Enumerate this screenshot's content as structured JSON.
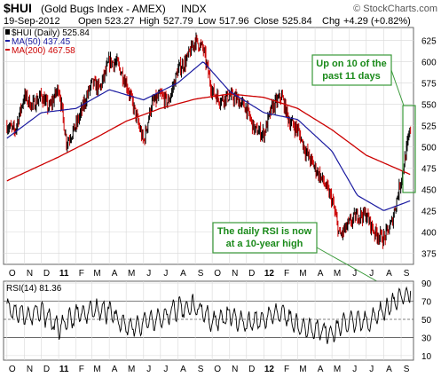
{
  "header": {
    "symbol": "$HUI",
    "name": "(Gold Bugs Index - AMEX)",
    "exchange": "INDX",
    "watermark": "© StockCharts.com",
    "date": "19-Sep-2012",
    "open_label": "Open",
    "open": "523.27",
    "high_label": "High",
    "high": "527.79",
    "low_label": "Low",
    "low": "517.96",
    "close_label": "Close",
    "close": "525.84",
    "chg_label": "Chg",
    "chg": "+4.29 (+0.82%)"
  },
  "legend": {
    "price": "$HUI (Daily) 525.84",
    "ma50": "MA(50) 437.45",
    "ma200": "MA(200) 467.58"
  },
  "annotations": {
    "top_right": [
      "Up on 10 of the",
      "past 11 days"
    ],
    "rsi": [
      "The daily RSI is now",
      "at a 10-year high"
    ]
  },
  "rsi_label": "RSI(14) 81.36",
  "colors": {
    "price_up": "#000000",
    "price_down": "#cc0000",
    "ma50": "#1a1aa0",
    "ma200": "#cc0000",
    "annotation_text": "#1a8a1a",
    "annotation_border": "#3a9a3a",
    "annotation_fill": "#ffffff",
    "rsi_line": "#000000",
    "grid": "#d8d8d8"
  },
  "chart_data": [
    {
      "type": "line",
      "subtype": "candlestick",
      "title": "$HUI (Gold Bugs Index - AMEX) INDX",
      "y_ticks": [
        375,
        400,
        425,
        450,
        475,
        500,
        525,
        550,
        575,
        600,
        625
      ],
      "ylim": [
        362,
        640
      ],
      "x_ticks": [
        "O",
        "N",
        "D",
        "11",
        "F",
        "M",
        "A",
        "M",
        "J",
        "J",
        "A",
        "S",
        "O",
        "N",
        "D",
        "12",
        "F",
        "M",
        "A",
        "M",
        "J",
        "J",
        "A",
        "S"
      ],
      "x_ticks_bold": [
        "11",
        "12"
      ],
      "series": [
        {
          "name": "$HUI (Daily)",
          "x": [
            "2010-10-01",
            "2010-10-15",
            "2010-11-01",
            "2010-11-15",
            "2010-12-01",
            "2010-12-15",
            "2011-01-01",
            "2011-01-15",
            "2011-02-01",
            "2011-02-15",
            "2011-03-01",
            "2011-03-15",
            "2011-04-01",
            "2011-04-15",
            "2011-05-01",
            "2011-05-15",
            "2011-06-01",
            "2011-06-15",
            "2011-07-01",
            "2011-07-15",
            "2011-08-01",
            "2011-08-15",
            "2011-09-01",
            "2011-09-15",
            "2011-10-01",
            "2011-10-15",
            "2011-11-01",
            "2011-11-15",
            "2011-12-01",
            "2011-12-15",
            "2012-01-01",
            "2012-01-15",
            "2012-02-01",
            "2012-02-15",
            "2012-03-01",
            "2012-03-15",
            "2012-04-01",
            "2012-04-15",
            "2012-05-01",
            "2012-05-15",
            "2012-06-01",
            "2012-06-15",
            "2012-07-01",
            "2012-07-15",
            "2012-08-01",
            "2012-08-15",
            "2012-09-01",
            "2012-09-19"
          ],
          "values": [
            525,
            518,
            560,
            548,
            560,
            545,
            570,
            505,
            525,
            550,
            575,
            568,
            600,
            598,
            575,
            545,
            505,
            550,
            560,
            552,
            590,
            600,
            625,
            615,
            565,
            555,
            560,
            555,
            545,
            520,
            515,
            545,
            560,
            530,
            520,
            495,
            475,
            460,
            438,
            395,
            410,
            420,
            420,
            400,
            392,
            410,
            462,
            526
          ]
        },
        {
          "name": "MA(50)",
          "x": [
            "2010-10-01",
            "2010-12-01",
            "2011-02-01",
            "2011-04-01",
            "2011-06-01",
            "2011-08-01",
            "2011-09-15",
            "2011-11-01",
            "2012-01-01",
            "2012-03-01",
            "2012-05-01",
            "2012-06-15",
            "2012-08-01",
            "2012-09-19"
          ],
          "values": [
            510,
            540,
            545,
            567,
            555,
            575,
            600,
            565,
            540,
            532,
            495,
            443,
            425,
            437
          ]
        },
        {
          "name": "MA(200)",
          "x": [
            "2010-10-01",
            "2011-01-01",
            "2011-03-01",
            "2011-05-01",
            "2011-07-01",
            "2011-09-01",
            "2011-11-01",
            "2012-01-01",
            "2012-03-01",
            "2012-05-01",
            "2012-07-01",
            "2012-09-19"
          ],
          "values": [
            460,
            488,
            508,
            530,
            545,
            556,
            562,
            558,
            545,
            520,
            490,
            467
          ]
        }
      ]
    },
    {
      "type": "line",
      "title": "RSI(14) 81.36",
      "y_ticks": [
        10,
        30,
        50,
        70,
        90
      ],
      "ylim": [
        5,
        92
      ],
      "reference_lines": [
        30,
        50,
        70
      ],
      "series": [
        {
          "name": "RSI(14)",
          "x": [
            "2010-10-01",
            "2010-11-01",
            "2010-12-01",
            "2011-01-01",
            "2011-02-01",
            "2011-03-01",
            "2011-04-01",
            "2011-05-01",
            "2011-06-01",
            "2011-07-01",
            "2011-08-01",
            "2011-09-01",
            "2011-10-01",
            "2011-11-01",
            "2011-12-01",
            "2012-01-01",
            "2012-02-01",
            "2012-03-01",
            "2012-04-01",
            "2012-05-01",
            "2012-06-01",
            "2012-07-01",
            "2012-08-01",
            "2012-09-19"
          ],
          "values": [
            62,
            55,
            58,
            40,
            55,
            60,
            58,
            42,
            45,
            52,
            62,
            65,
            48,
            55,
            45,
            50,
            58,
            42,
            40,
            35,
            50,
            45,
            60,
            81.36
          ]
        }
      ]
    }
  ]
}
